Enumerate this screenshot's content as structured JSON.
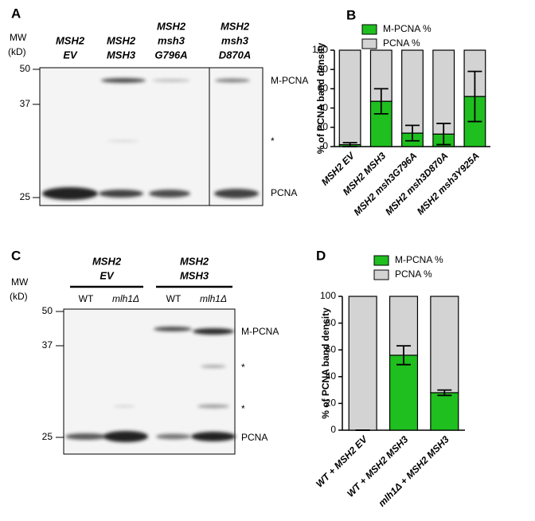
{
  "blots": [
    {
      "letter": "A",
      "mw": [
        "MW",
        "(kD)"
      ],
      "markers": [
        50,
        37,
        25
      ],
      "lanes": [
        [
          "MSH2",
          "EV"
        ],
        [
          "MSH2",
          "MSH3"
        ],
        [
          "MSH2",
          "msh3",
          "G796A"
        ],
        [
          "MSH2",
          "msh3",
          "D870A"
        ]
      ],
      "bands": [
        "M-PCNA",
        "*",
        "PCNA"
      ]
    },
    {
      "letter": "C",
      "mw": [
        "MW",
        "(kD)"
      ],
      "markers": [
        50,
        37,
        25
      ],
      "groups": [
        [
          "MSH2",
          "EV"
        ],
        [
          "MSH2",
          "MSH3"
        ]
      ],
      "lanes": [
        "WT",
        "mlh1Δ",
        "WT",
        "mlh1Δ"
      ],
      "bands": [
        "M-PCNA",
        "*",
        "*",
        "PCNA"
      ]
    }
  ],
  "chart_data": [
    {
      "type": "bar",
      "stacked": true,
      "label": "B",
      "y_label": "% of PCNA band density",
      "categories": [
        "MSH2 EV",
        "MSH2 MSH3",
        "MSH2 msh3G796A",
        "MSH2 msh3D870A",
        "MSH2 msh3Y925A"
      ],
      "series": [
        {
          "name": "M-PCNA %",
          "color": "#1fbf1f",
          "values": [
            2,
            47,
            14,
            13,
            52
          ],
          "errors": [
            2,
            13,
            8,
            11,
            26
          ]
        },
        {
          "name": "PCNA %",
          "color": "#d3d3d3",
          "values": [
            98,
            53,
            86,
            87,
            48
          ]
        }
      ],
      "ylim": [
        0,
        100
      ],
      "yticks": [
        0,
        20,
        40,
        60,
        80,
        100
      ]
    },
    {
      "type": "bar",
      "stacked": true,
      "label": "D",
      "y_label": "% of PCNA band density",
      "categories": [
        "WT + MSH2 EV",
        "WT + MSH2 MSH3",
        "mlh1Δ + MSH2 MSH3"
      ],
      "series": [
        {
          "name": "M-PCNA %",
          "color": "#1fbf1f",
          "values": [
            0,
            56,
            28
          ],
          "errors": [
            0,
            7,
            2
          ]
        },
        {
          "name": "PCNA %",
          "color": "#d3d3d3",
          "values": [
            100,
            44,
            72
          ]
        }
      ],
      "ylim": [
        0,
        100
      ],
      "yticks": [
        0,
        20,
        40,
        60,
        80,
        100
      ]
    }
  ]
}
